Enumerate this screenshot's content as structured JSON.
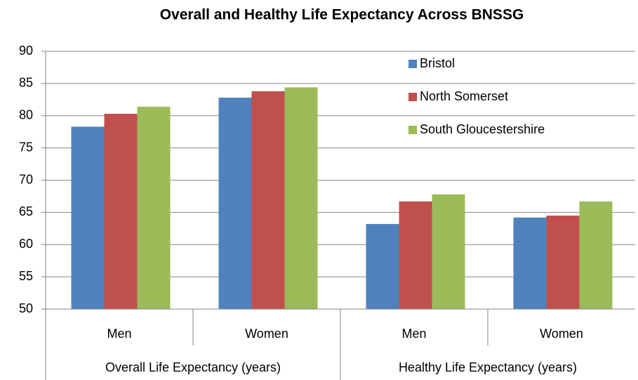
{
  "chart_data": {
    "type": "bar",
    "title": "Overall and Healthy Life Expectancy Across BNSSG",
    "category_groups": [
      {
        "name": "Overall Life Expectancy (years)",
        "categories": [
          "Men",
          "Women"
        ]
      },
      {
        "name": "Healthy Life Expectancy (years)",
        "categories": [
          "Men",
          "Women"
        ]
      }
    ],
    "series": [
      {
        "name": "Bristol",
        "color": "#4f81bd",
        "values": [
          78.3,
          82.8,
          63.2,
          64.2
        ]
      },
      {
        "name": "North Somerset",
        "color": "#c0504d",
        "values": [
          80.3,
          83.8,
          66.7,
          64.5
        ]
      },
      {
        "name": "South Gloucestershire",
        "color": "#9bbb59",
        "values": [
          81.4,
          84.4,
          67.8,
          66.7
        ]
      }
    ],
    "ylim": [
      50,
      90
    ],
    "yticks": [
      50,
      55,
      60,
      65,
      70,
      75,
      80,
      85,
      90
    ],
    "grid": true,
    "legend": "top-right"
  }
}
